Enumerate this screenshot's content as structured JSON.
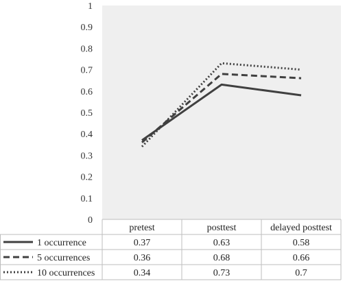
{
  "chart_data": {
    "type": "line",
    "title": "",
    "xlabel": "",
    "ylabel": "",
    "ylim": [
      0,
      1
    ],
    "yticks": [
      "0",
      "0.1",
      "0.2",
      "0.3",
      "0.4",
      "0.5",
      "0.6",
      "0.7",
      "0.8",
      "0.9",
      "1"
    ],
    "categories": [
      "pretest",
      "posttest",
      "delayed posttest"
    ],
    "grid": false,
    "legend": "data-table-below",
    "plot_background": "#efefef",
    "series": [
      {
        "name": "1 occurrence",
        "values": [
          0.37,
          0.63,
          0.58
        ],
        "table_values": [
          "0.37",
          "0.63",
          "0.58"
        ],
        "line_style": "solid",
        "color": "#404040"
      },
      {
        "name": "5 occurrences",
        "values": [
          0.36,
          0.68,
          0.66
        ],
        "table_values": [
          "0.36",
          "0.68",
          "0.66"
        ],
        "line_style": "dashed",
        "color": "#404040"
      },
      {
        "name": "10 occurrences",
        "values": [
          0.34,
          0.73,
          0.7
        ],
        "table_values": [
          "0.34",
          "0.73",
          "0.7"
        ],
        "line_style": "dotted",
        "color": "#404040"
      }
    ]
  }
}
